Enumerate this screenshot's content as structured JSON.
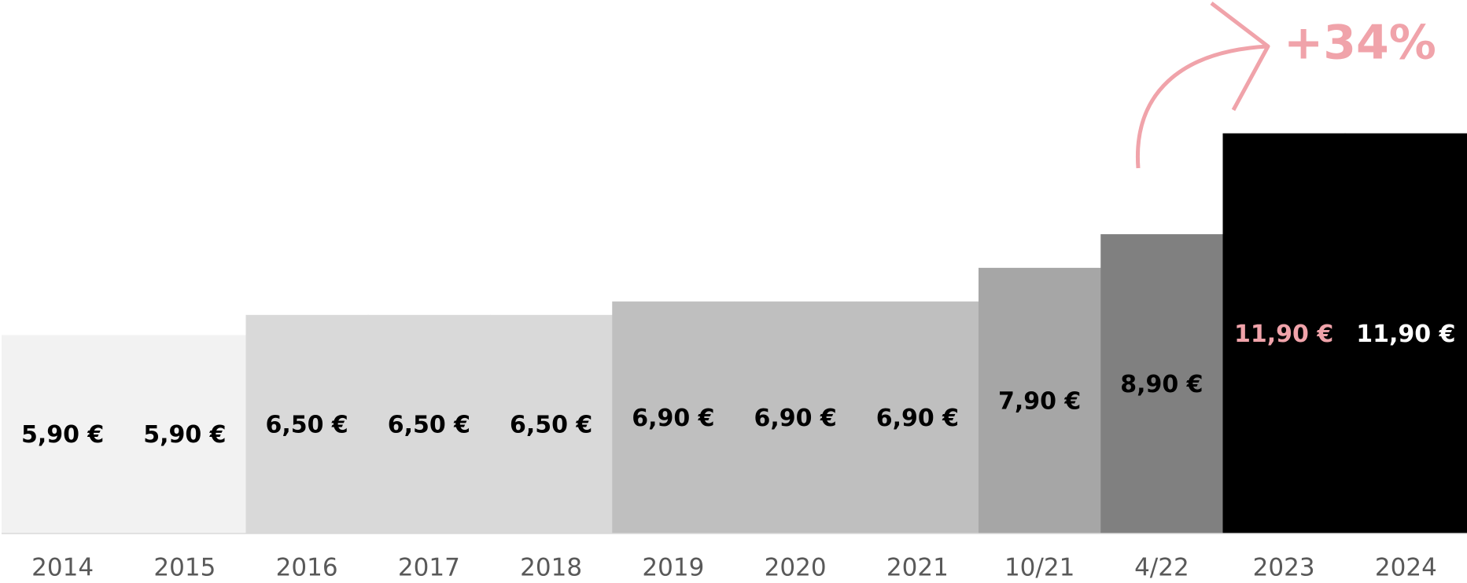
{
  "chart_data": {
    "type": "bar",
    "categories": [
      "2014",
      "2015",
      "2016",
      "2017",
      "2018",
      "2019",
      "2020",
      "2021",
      "10/21",
      "4/22",
      "2023",
      "2024"
    ],
    "values": [
      5.9,
      5.9,
      6.5,
      6.5,
      6.5,
      6.9,
      6.9,
      6.9,
      7.9,
      8.9,
      11.9,
      11.9
    ],
    "value_labels": [
      "5,90 €",
      "5,90 €",
      "6,50 €",
      "6,50 €",
      "6,50 €",
      "6,90 €",
      "6,90 €",
      "6,90 €",
      "7,90 €",
      "8,90 €",
      "11,90 €",
      "11,90 €"
    ],
    "colors": [
      "#f2f2f2",
      "#f2f2f2",
      "#d9d9d9",
      "#d9d9d9",
      "#d9d9d9",
      "#bfbfbf",
      "#bfbfbf",
      "#bfbfbf",
      "#a6a6a6",
      "#808080",
      "#000000",
      "#000000"
    ],
    "label_colors": [
      "#000000",
      "#000000",
      "#000000",
      "#000000",
      "#000000",
      "#000000",
      "#000000",
      "#000000",
      "#000000",
      "#000000",
      "#f0a3aa",
      "#ffffff"
    ],
    "ylim": [
      0,
      16
    ],
    "annotation": "+34%",
    "annotation_color": "#f0a3aa"
  }
}
